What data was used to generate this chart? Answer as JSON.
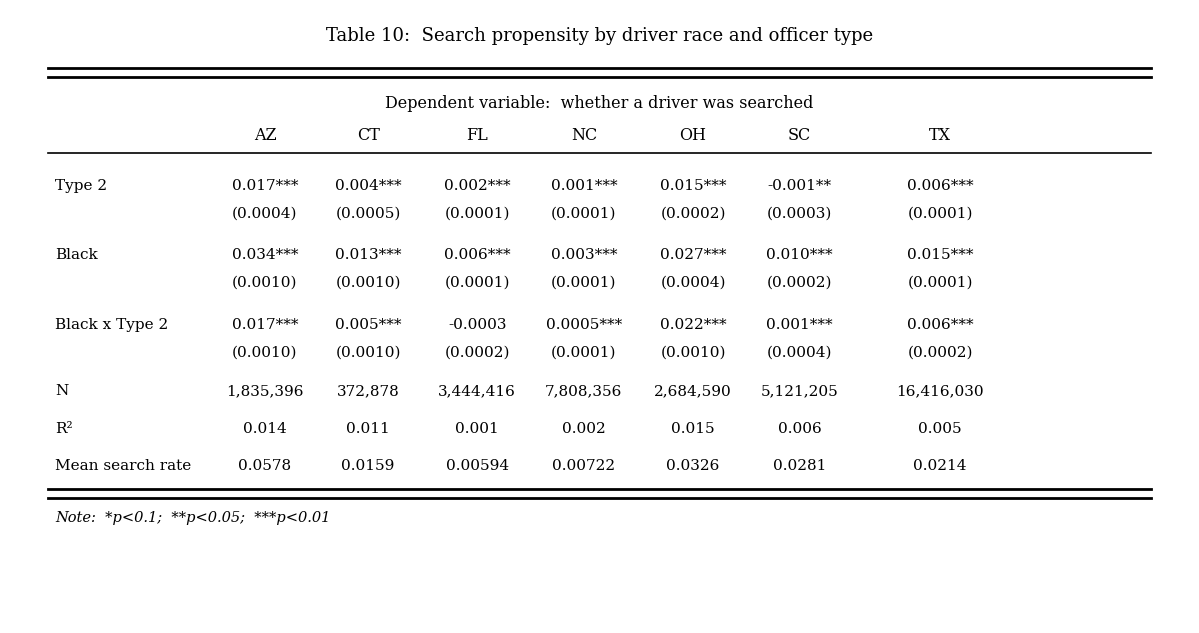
{
  "title": "Table 10:  Search propensity by driver race and officer type",
  "subtitle": "Dependent variable:  whether a driver was searched",
  "col_headers": [
    "AZ",
    "CT",
    "FL",
    "NC",
    "OH",
    "SC",
    "TX"
  ],
  "rows": [
    {
      "label": "Type 2",
      "values": [
        "0.017***",
        "0.004***",
        "0.002***",
        "0.001***",
        "0.015***",
        "-0.001**",
        "0.006***"
      ],
      "se": [
        "(0.0004)",
        "(0.0005)",
        "(0.0001)",
        "(0.0001)",
        "(0.0002)",
        "(0.0003)",
        "(0.0001)"
      ]
    },
    {
      "label": "Black",
      "values": [
        "0.034***",
        "0.013***",
        "0.006***",
        "0.003***",
        "0.027***",
        "0.010***",
        "0.015***"
      ],
      "se": [
        "(0.0010)",
        "(0.0010)",
        "(0.0001)",
        "(0.0001)",
        "(0.0004)",
        "(0.0002)",
        "(0.0001)"
      ]
    },
    {
      "label": "Black x Type 2",
      "values": [
        "0.017***",
        "0.005***",
        "-0.0003",
        "0.0005***",
        "0.022***",
        "0.001***",
        "0.006***"
      ],
      "se": [
        "(0.0010)",
        "(0.0010)",
        "(0.0002)",
        "(0.0001)",
        "(0.0010)",
        "(0.0004)",
        "(0.0002)"
      ]
    },
    {
      "label": "N",
      "values": [
        "1,835,396",
        "372,878",
        "3,444,416",
        "7,808,356",
        "2,684,590",
        "5,121,205",
        "16,416,030"
      ],
      "se": null
    },
    {
      "label": "R²",
      "values": [
        "0.014",
        "0.011",
        "0.001",
        "0.002",
        "0.015",
        "0.006",
        "0.005"
      ],
      "se": null
    },
    {
      "label": "Mean search rate",
      "values": [
        "0.0578",
        "0.0159",
        "0.00594",
        "0.00722",
        "0.0326",
        "0.0281",
        "0.0214"
      ],
      "se": null
    }
  ],
  "note": "Note:  *p<0.1;  **p<0.05;  ***p<0.01",
  "bg_color": "#ffffff",
  "text_color": "#000000",
  "fig_width": 11.99,
  "fig_height": 6.33,
  "dpi": 100
}
